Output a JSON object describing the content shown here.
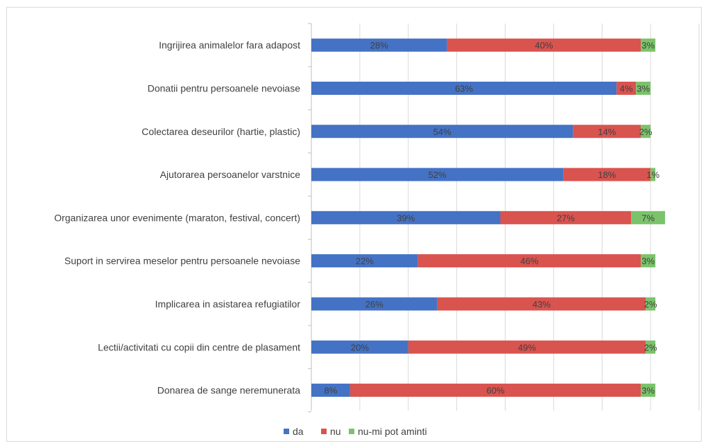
{
  "chart_data": {
    "type": "bar",
    "orientation": "horizontal",
    "stacked": true,
    "categories": [
      "Ingrijirea animalelor fara adapost",
      "Donatii pentru persoanele nevoiase",
      "Colectarea deseurilor (hartie, plastic)",
      "Ajutorarea persoanelor varstnice",
      "Organizarea unor evenimente (maraton, festival, concert)",
      "Suport in servirea meselor pentru persoanele nevoiase",
      "Implicarea in asistarea refugiatilor",
      "Lectii/activitati cu copii din centre de plasament",
      "Donarea de sange neremunerata"
    ],
    "series": [
      {
        "name": "da",
        "color": "#4472c4",
        "values": [
          28,
          63,
          54,
          52,
          39,
          22,
          26,
          20,
          8
        ],
        "labels": [
          "28%",
          "63%",
          "54%",
          "52%",
          "39%",
          "22%",
          "26%",
          "20%",
          "8%"
        ]
      },
      {
        "name": "nu",
        "color": "#d9534f",
        "values": [
          40,
          4,
          14,
          18,
          27,
          46,
          43,
          49,
          60
        ],
        "labels": [
          "40%",
          "4%",
          "14%",
          "18%",
          "27%",
          "46%",
          "43%",
          "49%",
          "60%"
        ]
      },
      {
        "name": "nu-mi pot aminti",
        "color": "#7ac36a",
        "values": [
          3,
          3,
          2,
          1,
          7,
          3,
          2,
          2,
          3
        ],
        "labels": [
          "3%",
          "3%",
          "2%",
          "1%",
          "7%",
          "3%",
          "2%",
          "2%",
          "3%"
        ]
      }
    ],
    "xlim": [
      0,
      80
    ],
    "grid": true,
    "legend_position": "bottom"
  }
}
